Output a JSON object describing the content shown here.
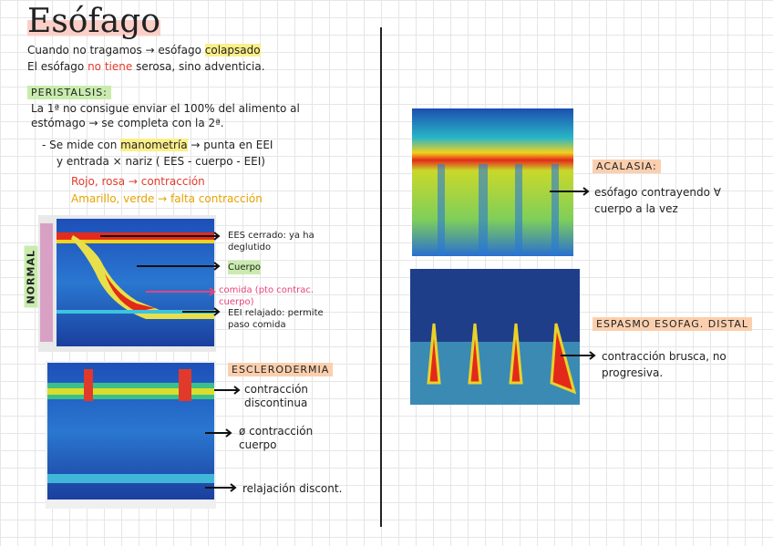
{
  "title": "Esófago",
  "intro": [
    "Cuando no tragamos → esófago",
    "colapsado",
    "El esófago",
    "no tiene",
    "serosa, sino adventicia."
  ],
  "peristalsis": {
    "heading": "PERISTALSIS:",
    "text": [
      "La 1ª no consigue enviar el 100% del alimento al",
      "estómago → se completa con la 2ª."
    ],
    "manometry": [
      "- Se mide con",
      "manometría",
      "→ punta en EEI",
      "y entrada × nariz ( EES - cuerpo - EEI)"
    ],
    "red": "Rojo, rosa → contracción",
    "yellow": "Amarillo, verde → falta contracción"
  },
  "normal": {
    "label": "NORMAL",
    "notes": [
      "EES cerrado: ya ha deglutido",
      "Cuerpo",
      "comida (pto contrac. cuerpo)",
      "EEI relajado: permite paso comida"
    ]
  },
  "sclero": {
    "heading": "ESCLERODERMIA",
    "notes": [
      "contracción discontinua",
      "ø contracción cuerpo",
      "relajación discont."
    ]
  },
  "acalasia": {
    "heading": "ACALASIA:",
    "note": "esófago contrayendo ∀ cuerpo a la vez"
  },
  "espasmo": {
    "heading": "ESPASMO ESOFAG. DISTAL",
    "note": "contracción brusca, no progresiva."
  }
}
